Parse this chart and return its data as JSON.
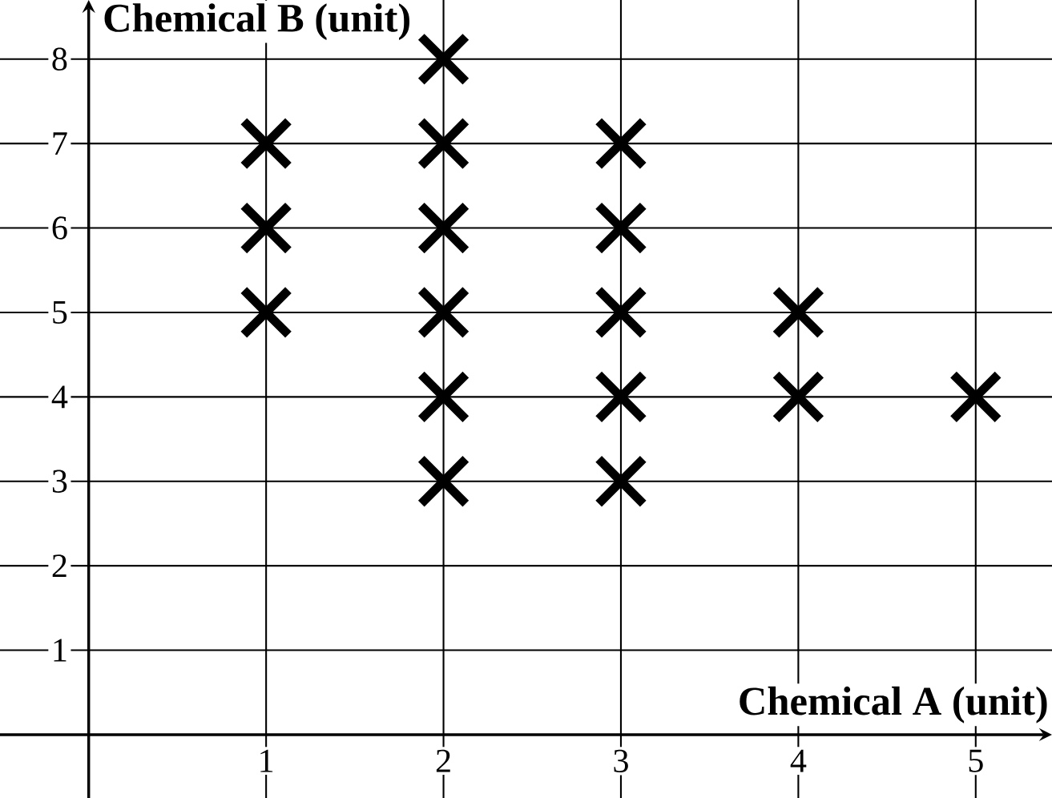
{
  "chart_data": {
    "type": "scatter",
    "x": [
      1,
      1,
      1,
      2,
      2,
      2,
      2,
      2,
      2,
      3,
      3,
      3,
      3,
      3,
      4,
      4,
      5
    ],
    "values": [
      7,
      6,
      5,
      8,
      7,
      6,
      5,
      4,
      3,
      7,
      6,
      5,
      4,
      3,
      5,
      4,
      4
    ],
    "color": "#000000",
    "marker": "cross",
    "grid": true,
    "xlabel": "Chemical A (unit)",
    "ylabel": "Chemical B (unit)",
    "xlim": [
      -0.5,
      5.43
    ],
    "ylim": [
      -0.75,
      8.7
    ],
    "xticks": [
      1,
      2,
      3,
      4,
      5
    ],
    "yticks": [
      1,
      2,
      3,
      4,
      5,
      6,
      7,
      8
    ]
  }
}
